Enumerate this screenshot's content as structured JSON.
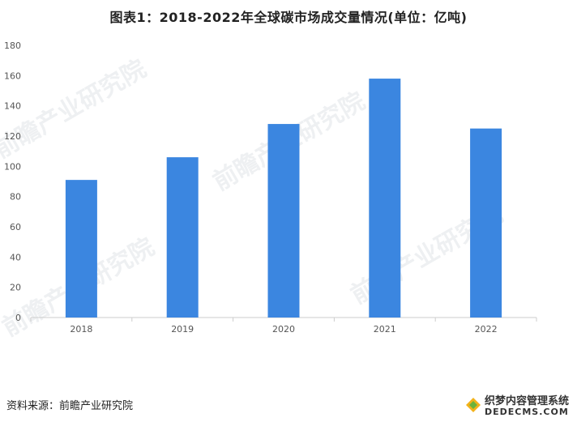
{
  "title": "图表1：2018-2022年全球碳市场成交量情况(单位：亿吨)",
  "source": "资料来源：前瞻产业研究院",
  "watermark": {
    "text": "前瞻产业研究院",
    "site_name": "织梦内容管理系统",
    "site_url": "DEDECMS.COM"
  },
  "colors": {
    "bar": "#3b86e0",
    "axis": "#cccccc",
    "tick_text": "#555555"
  },
  "chart_data": {
    "type": "bar",
    "categories": [
      "2018",
      "2019",
      "2020",
      "2021",
      "2022"
    ],
    "values": [
      91,
      106,
      128,
      158,
      125
    ],
    "ylim": [
      0,
      180
    ],
    "yticks": [
      0,
      20,
      40,
      60,
      80,
      100,
      120,
      140,
      160,
      180
    ],
    "xlabel": "",
    "ylabel": "",
    "grid": false,
    "legend": "none"
  }
}
